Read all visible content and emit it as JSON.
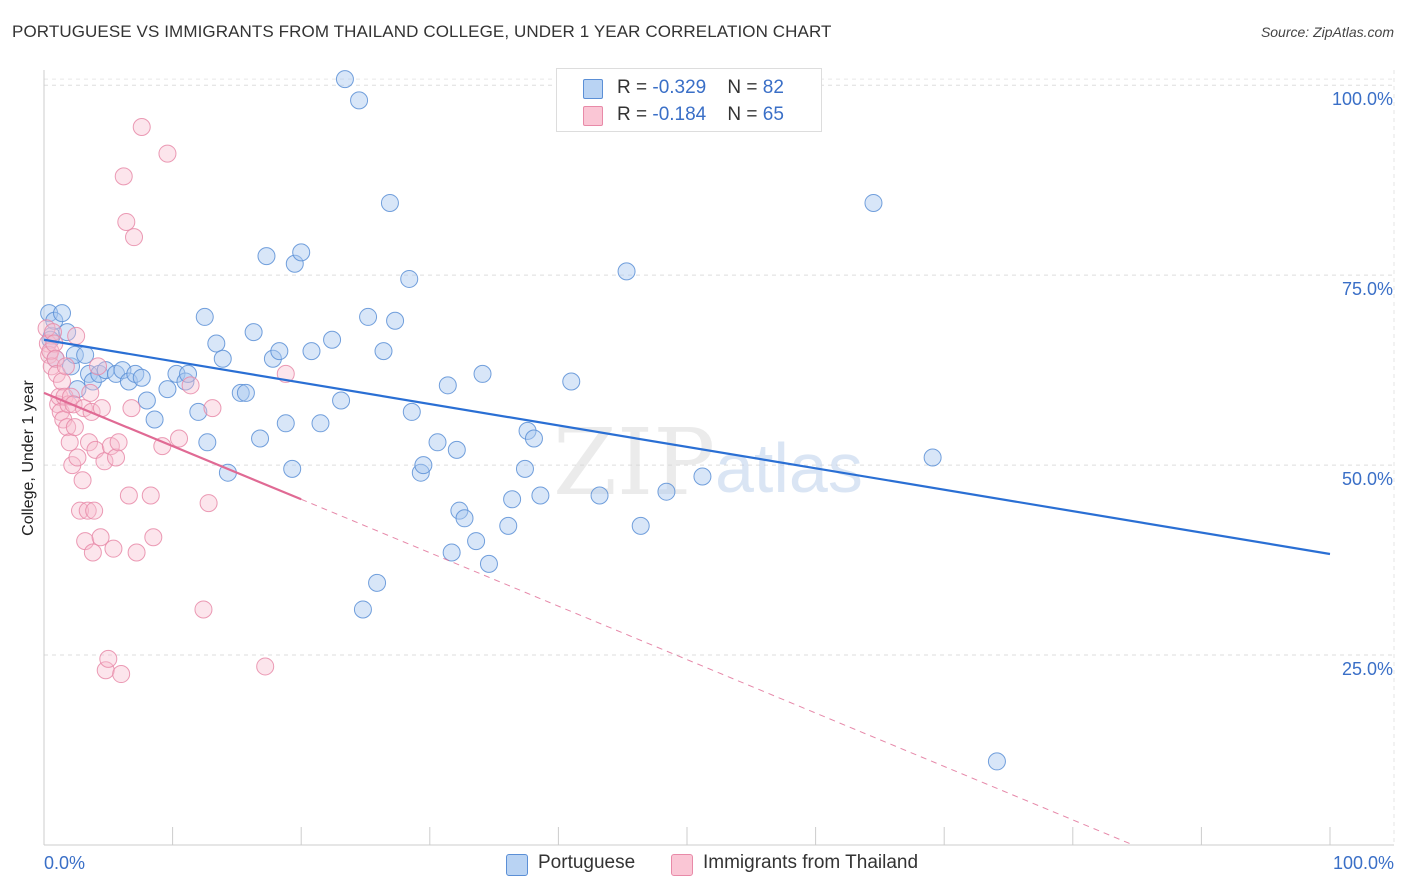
{
  "title": "PORTUGUESE VS IMMIGRANTS FROM THAILAND COLLEGE, UNDER 1 YEAR CORRELATION CHART",
  "source": "Source: ZipAtlas.com",
  "watermark": {
    "zip": "ZIP",
    "atlas": "atlas"
  },
  "colors": {
    "portuguese_fill": "#a8c8f0",
    "portuguese_stroke": "#5b8fd6",
    "portuguese_line": "#2a6fd4",
    "thailand_fill": "#f8bfd0",
    "thailand_stroke": "#e88aa8",
    "thailand_line": "#e06a94",
    "grid": "#dddddd",
    "tick_label": "#3a6fc7"
  },
  "legend": {
    "portuguese": {
      "r_label": "R = ",
      "r_value": "-0.329",
      "n_label": "N = ",
      "n_value": "82"
    },
    "thailand": {
      "r_label": "R = ",
      "r_value": "-0.184",
      "n_label": "N = ",
      "n_value": "65"
    }
  },
  "chart_data": {
    "type": "scatter",
    "title": "PORTUGUESE VS IMMIGRANTS FROM THAILAND COLLEGE, UNDER 1 YEAR CORRELATION CHART",
    "xlabel": "",
    "ylabel": "College, Under 1 year",
    "xlim": [
      0,
      100
    ],
    "ylim": [
      0,
      102
    ],
    "x_tick_labels": [
      "0.0%",
      "100.0%"
    ],
    "y_ticks": [
      25,
      50,
      75,
      100
    ],
    "y_tick_labels": [
      "25.0%",
      "50.0%",
      "75.0%",
      "100.0%"
    ],
    "grid": true,
    "legend_position": "top-center",
    "series": [
      {
        "name": "Portuguese",
        "r": -0.329,
        "n": 82,
        "trend": {
          "x": [
            0,
            100
          ],
          "y": [
            66.5,
            38.3
          ]
        },
        "points": [
          [
            0.4,
            70
          ],
          [
            0.6,
            67
          ],
          [
            0.8,
            69
          ],
          [
            0.5,
            66.5
          ],
          [
            0.9,
            64
          ],
          [
            1.4,
            70
          ],
          [
            1.8,
            67.5
          ],
          [
            2.1,
            63
          ],
          [
            2.4,
            64.5
          ],
          [
            2.6,
            60
          ],
          [
            3.2,
            64.5
          ],
          [
            3.5,
            62
          ],
          [
            3.8,
            61
          ],
          [
            4.3,
            62
          ],
          [
            4.8,
            62.5
          ],
          [
            5.6,
            62
          ],
          [
            6.1,
            62.5
          ],
          [
            6.6,
            61
          ],
          [
            7.1,
            62
          ],
          [
            7.6,
            61.5
          ],
          [
            8.0,
            58.5
          ],
          [
            8.6,
            56
          ],
          [
            9.6,
            60
          ],
          [
            10.3,
            62
          ],
          [
            11.0,
            61
          ],
          [
            11.2,
            62
          ],
          [
            12.0,
            57
          ],
          [
            12.5,
            69.5
          ],
          [
            12.7,
            53
          ],
          [
            13.4,
            66
          ],
          [
            13.9,
            64
          ],
          [
            14.3,
            49
          ],
          [
            15.3,
            59.5
          ],
          [
            15.7,
            59.5
          ],
          [
            16.3,
            67.5
          ],
          [
            16.8,
            53.5
          ],
          [
            17.3,
            77.5
          ],
          [
            17.8,
            64
          ],
          [
            18.3,
            65
          ],
          [
            18.8,
            55.5
          ],
          [
            19.3,
            49.5
          ],
          [
            19.5,
            76.5
          ],
          [
            20.0,
            78
          ],
          [
            20.8,
            65
          ],
          [
            21.5,
            55.5
          ],
          [
            22.4,
            66.5
          ],
          [
            23.1,
            58.5
          ],
          [
            23.4,
            100.8
          ],
          [
            24.5,
            98
          ],
          [
            24.8,
            31
          ],
          [
            25.2,
            69.5
          ],
          [
            25.9,
            34.5
          ],
          [
            26.4,
            65
          ],
          [
            26.9,
            84.5
          ],
          [
            27.3,
            69
          ],
          [
            28.4,
            74.5
          ],
          [
            28.6,
            57
          ],
          [
            29.3,
            49
          ],
          [
            29.5,
            50
          ],
          [
            30.6,
            53
          ],
          [
            31.4,
            60.5
          ],
          [
            31.7,
            38.5
          ],
          [
            32.1,
            52
          ],
          [
            32.3,
            44
          ],
          [
            32.7,
            43
          ],
          [
            33.6,
            40
          ],
          [
            34.1,
            62
          ],
          [
            34.6,
            37
          ],
          [
            36.1,
            42
          ],
          [
            36.4,
            45.5
          ],
          [
            37.4,
            49.5
          ],
          [
            37.6,
            54.5
          ],
          [
            38.1,
            53.5
          ],
          [
            38.6,
            46
          ],
          [
            41.0,
            61
          ],
          [
            43.2,
            46
          ],
          [
            45.3,
            75.5
          ],
          [
            46.4,
            42
          ],
          [
            48.4,
            46.5
          ],
          [
            51.2,
            48.5
          ],
          [
            57.8,
            101
          ],
          [
            64.5,
            84.5
          ],
          [
            69.1,
            51
          ],
          [
            74.1,
            11
          ]
        ]
      },
      {
        "name": "Immigrants from Thailand",
        "r": -0.184,
        "n": 65,
        "trend_solid": {
          "x": [
            0,
            20
          ],
          "y": [
            59.5,
            45.5
          ]
        },
        "trend_dashed": {
          "x": [
            20,
            84.7
          ],
          "y": [
            45.5,
            0
          ]
        },
        "points": [
          [
            0.2,
            68
          ],
          [
            0.3,
            66
          ],
          [
            0.4,
            64.5
          ],
          [
            0.5,
            65
          ],
          [
            0.6,
            63
          ],
          [
            0.7,
            67.5
          ],
          [
            0.8,
            66
          ],
          [
            0.9,
            64
          ],
          [
            1.0,
            62
          ],
          [
            1.1,
            58
          ],
          [
            1.2,
            59
          ],
          [
            1.3,
            57
          ],
          [
            1.4,
            61
          ],
          [
            1.5,
            56
          ],
          [
            1.6,
            59
          ],
          [
            1.7,
            63
          ],
          [
            1.8,
            55
          ],
          [
            1.9,
            58
          ],
          [
            2.0,
            53
          ],
          [
            2.1,
            59
          ],
          [
            2.2,
            50
          ],
          [
            2.3,
            58
          ],
          [
            2.4,
            55
          ],
          [
            2.5,
            67
          ],
          [
            2.6,
            51
          ],
          [
            2.8,
            44
          ],
          [
            3.0,
            48
          ],
          [
            3.1,
            57.5
          ],
          [
            3.2,
            40
          ],
          [
            3.4,
            44
          ],
          [
            3.5,
            53
          ],
          [
            3.6,
            59.5
          ],
          [
            3.7,
            57
          ],
          [
            3.8,
            38.5
          ],
          [
            3.9,
            44
          ],
          [
            4.0,
            52
          ],
          [
            4.2,
            63
          ],
          [
            4.4,
            40.5
          ],
          [
            4.5,
            57.5
          ],
          [
            4.7,
            50.5
          ],
          [
            4.8,
            23
          ],
          [
            5.0,
            24.5
          ],
          [
            5.2,
            52.5
          ],
          [
            5.4,
            39
          ],
          [
            5.6,
            51
          ],
          [
            5.8,
            53
          ],
          [
            6.0,
            22.5
          ],
          [
            6.2,
            88
          ],
          [
            6.4,
            82
          ],
          [
            6.6,
            46
          ],
          [
            6.8,
            57.5
          ],
          [
            7.0,
            80
          ],
          [
            7.2,
            38.5
          ],
          [
            7.6,
            94.5
          ],
          [
            8.3,
            46
          ],
          [
            8.5,
            40.5
          ],
          [
            9.2,
            52.5
          ],
          [
            9.6,
            91
          ],
          [
            10.5,
            53.5
          ],
          [
            11.4,
            60.5
          ],
          [
            12.4,
            31
          ],
          [
            12.8,
            45
          ],
          [
            13.1,
            57.5
          ],
          [
            17.2,
            23.5
          ],
          [
            18.8,
            62
          ]
        ]
      }
    ]
  }
}
